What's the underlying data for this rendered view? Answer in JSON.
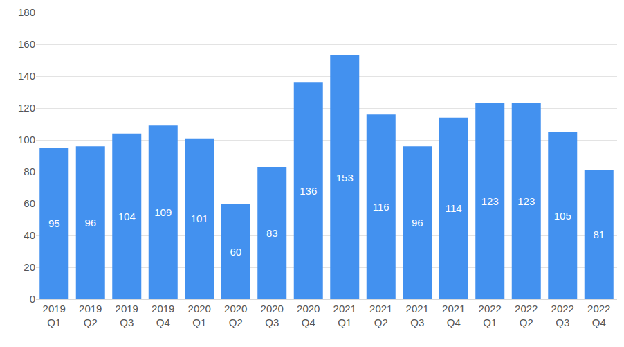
{
  "chart_data": {
    "type": "bar",
    "categories": [
      "2019 Q1",
      "2019 Q2",
      "2019 Q3",
      "2019 Q4",
      "2020 Q1",
      "2020 Q2",
      "2020 Q3",
      "2020 Q4",
      "2021 Q1",
      "2021 Q2",
      "2021 Q3",
      "2021 Q4",
      "2022 Q1",
      "2022 Q2",
      "2022 Q3",
      "2022 Q4"
    ],
    "values": [
      95,
      96,
      104,
      109,
      101,
      60,
      83,
      136,
      153,
      116,
      96,
      114,
      123,
      123,
      105,
      81
    ],
    "color": "#4391ef",
    "ylim": [
      0,
      180
    ],
    "yticks": [
      0,
      20,
      40,
      60,
      80,
      100,
      120,
      140,
      160,
      180
    ],
    "grid": true,
    "data_labels": true
  }
}
